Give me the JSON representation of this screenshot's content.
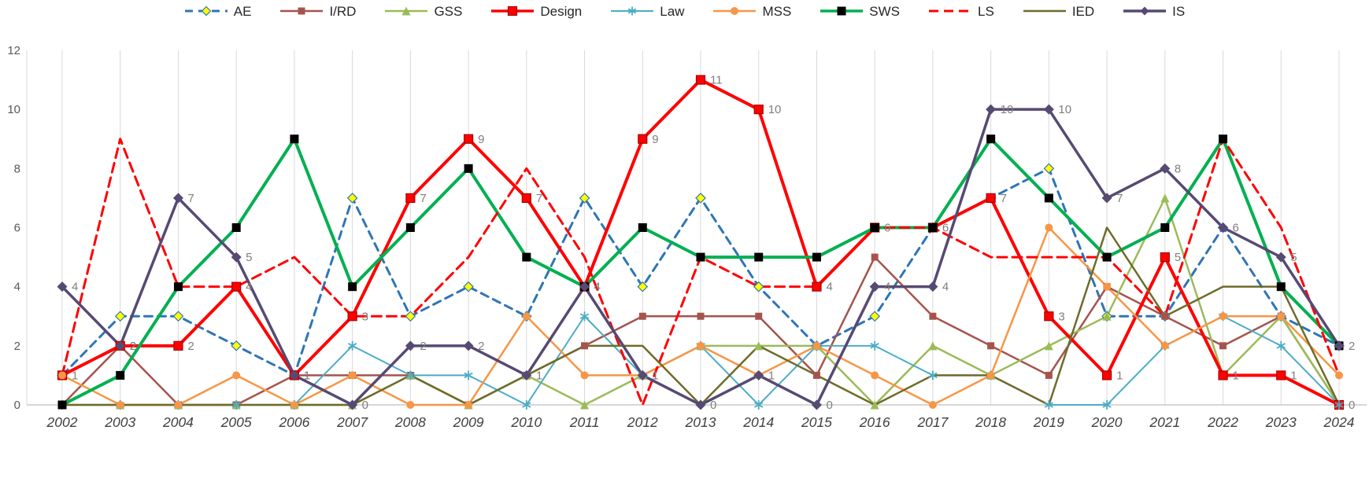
{
  "chart_data": {
    "type": "line",
    "title": "",
    "xlabel": "",
    "ylabel": "",
    "categories": [
      "2002",
      "2003",
      "2004",
      "2005",
      "2006",
      "2007",
      "2008",
      "2009",
      "2010",
      "2011",
      "2012",
      "2013",
      "2014",
      "2015",
      "2016",
      "2017",
      "2018",
      "2019",
      "2020",
      "2021",
      "2022",
      "2023",
      "2024"
    ],
    "ylim": [
      0,
      12
    ],
    "yticks": [
      0,
      2,
      4,
      6,
      8,
      10,
      12
    ],
    "legend_position": "top",
    "gridlines": "vertical",
    "series": [
      {
        "name": "AE",
        "color": "#2E75B6",
        "width": 3,
        "dash": "10 7",
        "marker": "diamond",
        "marker_fill": "#FFFF00",
        "marker_stroke": "#2E75B6",
        "marker_size": 6,
        "data_labels": false,
        "values": [
          1,
          3,
          3,
          2,
          1,
          7,
          3,
          4,
          3,
          7,
          4,
          7,
          4,
          2,
          3,
          6,
          7,
          8,
          3,
          3,
          6,
          3,
          2
        ]
      },
      {
        "name": "I/RD",
        "color": "#A5544D",
        "width": 2.5,
        "dash": null,
        "marker": "square",
        "marker_fill": "#A5544D",
        "marker_stroke": null,
        "marker_size": 4.5,
        "data_labels": false,
        "values": [
          0,
          2,
          0,
          0,
          1,
          1,
          1,
          0,
          1,
          2,
          3,
          3,
          3,
          1,
          5,
          3,
          2,
          1,
          4,
          3,
          2,
          3,
          0
        ]
      },
      {
        "name": "GSS",
        "color": "#9BBB59",
        "width": 2.5,
        "dash": null,
        "marker": "triangle",
        "marker_fill": "#9BBB59",
        "marker_stroke": null,
        "marker_size": 5.5,
        "data_labels": false,
        "values": [
          0,
          0,
          0,
          0,
          0,
          0,
          1,
          0,
          1,
          0,
          1,
          2,
          2,
          2,
          0,
          2,
          1,
          2,
          3,
          7,
          1,
          3,
          0
        ]
      },
      {
        "name": "Design",
        "color": "#FF0000",
        "width": 4,
        "dash": null,
        "marker": "square",
        "marker_fill": "#FF0000",
        "marker_stroke": "#A80000",
        "marker_size": 5.5,
        "data_labels": true,
        "values": [
          1,
          2,
          2,
          4,
          1,
          3,
          7,
          9,
          7,
          4,
          9,
          11,
          10,
          4,
          6,
          6,
          7,
          3,
          1,
          5,
          1,
          1,
          0
        ]
      },
      {
        "name": "Law",
        "color": "#4BACC6",
        "width": 2,
        "dash": null,
        "marker": "asterisk",
        "marker_fill": null,
        "marker_stroke": "#4BACC6",
        "marker_size": 6,
        "data_labels": false,
        "values": [
          0,
          0,
          0,
          0,
          0,
          2,
          1,
          1,
          0,
          3,
          1,
          2,
          0,
          2,
          2,
          1,
          1,
          0,
          0,
          2,
          3,
          2,
          0
        ]
      },
      {
        "name": "MSS",
        "color": "#F79646",
        "width": 2.5,
        "dash": null,
        "marker": "circle",
        "marker_fill": "#F79646",
        "marker_stroke": null,
        "marker_size": 5,
        "data_labels": false,
        "values": [
          1,
          0,
          0,
          1,
          0,
          1,
          0,
          0,
          3,
          1,
          1,
          2,
          1,
          2,
          1,
          0,
          1,
          6,
          4,
          2,
          3,
          3,
          1
        ]
      },
      {
        "name": "SWS",
        "color": "#00B050",
        "width": 4,
        "dash": null,
        "marker": "square",
        "marker_fill": "#000000",
        "marker_stroke": null,
        "marker_size": 5.5,
        "data_labels": false,
        "values": [
          0,
          1,
          4,
          6,
          9,
          4,
          6,
          8,
          5,
          4,
          6,
          5,
          5,
          5,
          6,
          6,
          9,
          7,
          5,
          6,
          9,
          4,
          2
        ]
      },
      {
        "name": "LS",
        "color": "#FF0000",
        "width": 3,
        "dash": "12 7",
        "marker": "none",
        "marker_fill": null,
        "marker_stroke": null,
        "marker_size": 0,
        "data_labels": false,
        "values": [
          1,
          9,
          4,
          4,
          5,
          3,
          3,
          5,
          8,
          5,
          0,
          5,
          4,
          4,
          6,
          6,
          5,
          5,
          5,
          3,
          9,
          6,
          1
        ]
      },
      {
        "name": "IED",
        "color": "#6E6B2A",
        "width": 2.5,
        "dash": null,
        "marker": "none",
        "marker_fill": null,
        "marker_stroke": null,
        "marker_size": 0,
        "data_labels": false,
        "values": [
          0,
          0,
          0,
          0,
          0,
          0,
          1,
          0,
          1,
          2,
          2,
          0,
          2,
          1,
          0,
          1,
          1,
          0,
          6,
          3,
          4,
          4,
          0
        ]
      },
      {
        "name": "IS",
        "color": "#564A73",
        "width": 3.5,
        "dash": null,
        "marker": "diamond",
        "marker_fill": "#564A73",
        "marker_stroke": null,
        "marker_size": 6.5,
        "data_labels": true,
        "values": [
          4,
          2,
          7,
          5,
          1,
          0,
          2,
          2,
          1,
          4,
          1,
          0,
          1,
          0,
          4,
          4,
          10,
          10,
          7,
          8,
          6,
          5,
          2
        ]
      }
    ]
  },
  "colors": {
    "background": "#FFFFFF",
    "gridline": "#D9D9D9",
    "axis_line": "#BFBFBF",
    "x_label": "#404040",
    "y_label": "#595959",
    "data_label": "#7F7F7F",
    "legend_text": "#262626"
  }
}
